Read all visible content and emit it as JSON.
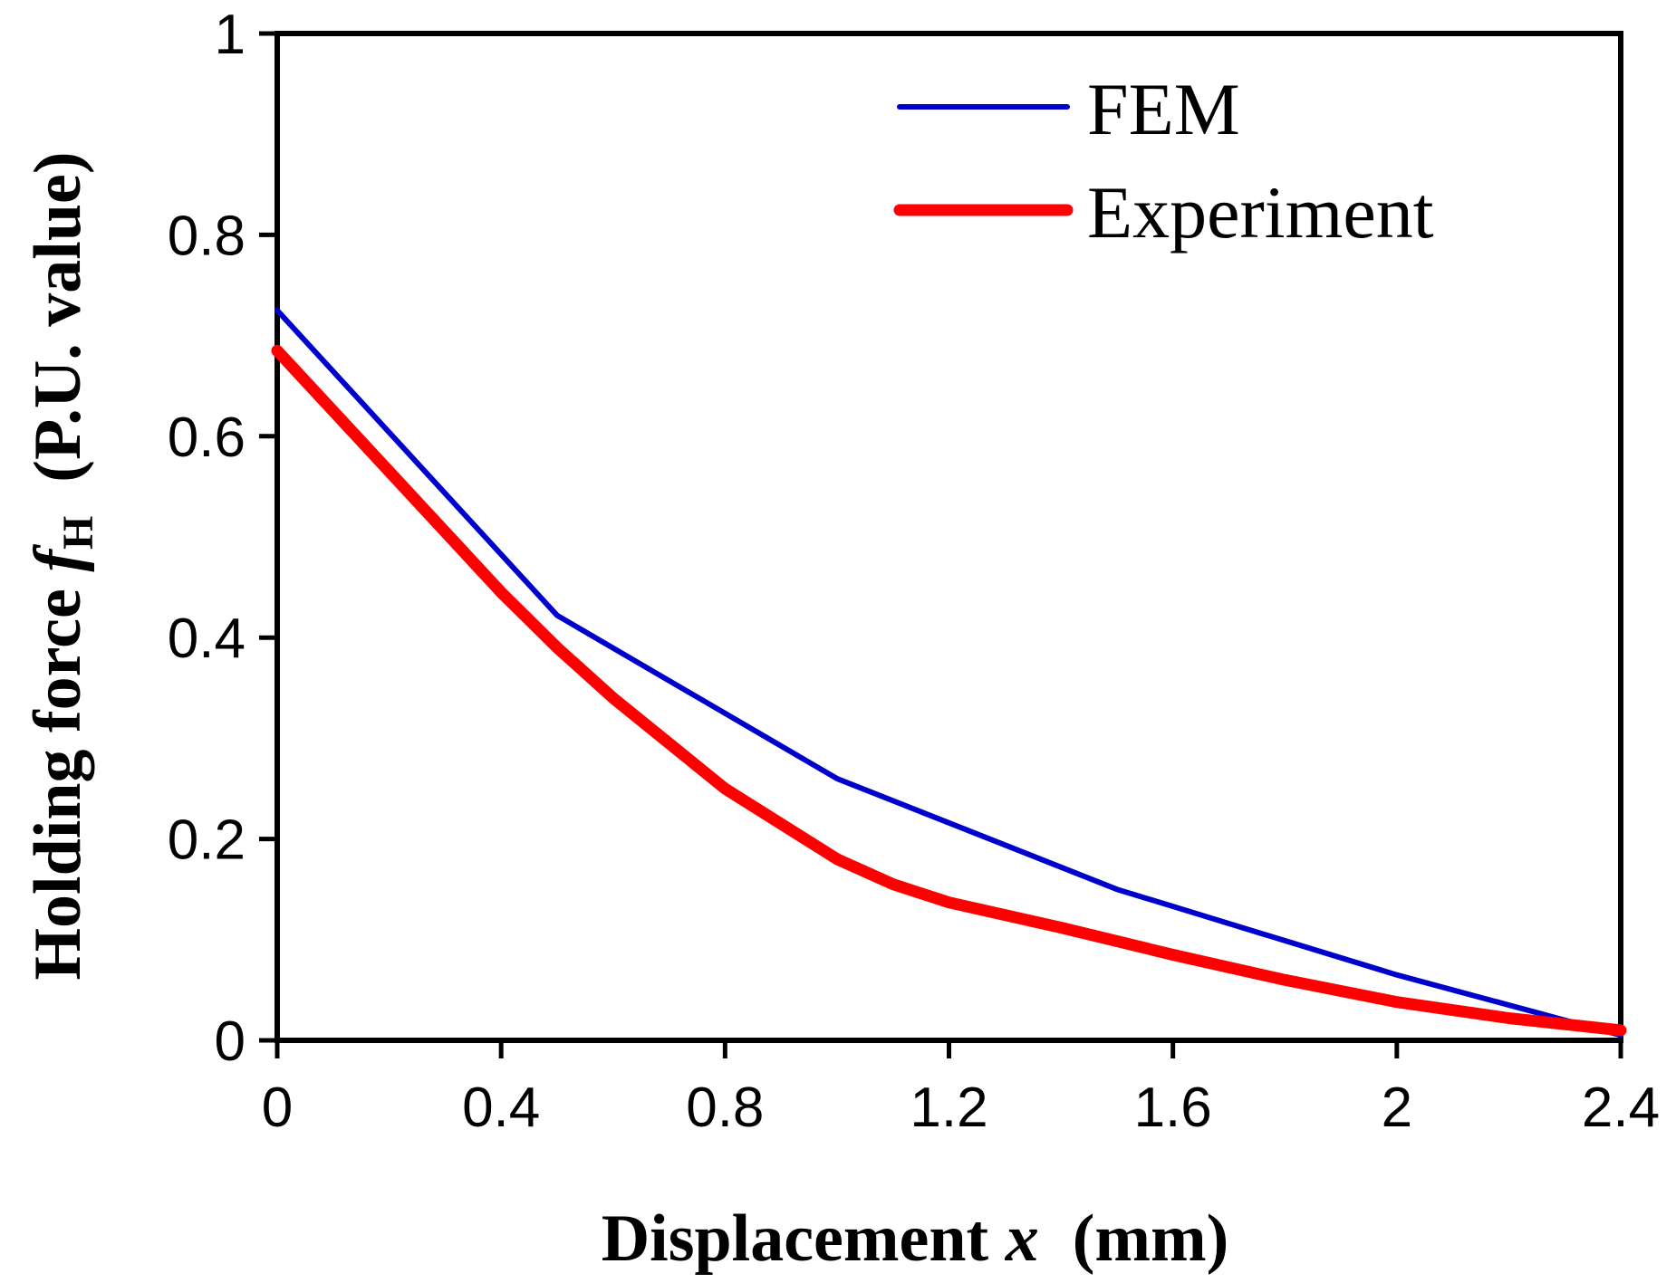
{
  "chart_data": {
    "type": "line",
    "xlabel_prefix": "Displacement",
    "xlabel_var": "x",
    "xlabel_unit": "(mm)",
    "ylabel_prefix": "Holding force",
    "ylabel_var": "f",
    "ylabel_sub": "H",
    "ylabel_unit": "(P.U. value)",
    "xlim": [
      0,
      2.4
    ],
    "ylim": [
      0,
      1
    ],
    "xticks": [
      0,
      0.4,
      0.8,
      1.2,
      1.6,
      2,
      2.4
    ],
    "xtick_labels": [
      "0",
      "0.4",
      "0.8",
      "1.2",
      "1.6",
      "2",
      "2.4"
    ],
    "yticks": [
      0,
      0.2,
      0.4,
      0.6,
      0.8,
      1
    ],
    "ytick_labels": [
      "0",
      "0.2",
      "0.4",
      "0.6",
      "0.8",
      "1"
    ],
    "grid": false,
    "legend_position": "top-right",
    "series": [
      {
        "name": "FEM",
        "color": "#0000cc",
        "x": [
          0,
          0.5,
          1.0,
          1.5,
          2.0,
          2.4
        ],
        "y": [
          0.725,
          0.422,
          0.26,
          0.15,
          0.065,
          0.005
        ]
      },
      {
        "name": "Experiment",
        "color": "#ff0000",
        "x": [
          0,
          0.2,
          0.4,
          0.5,
          0.6,
          0.8,
          1.0,
          1.1,
          1.2,
          1.4,
          1.6,
          1.8,
          2.0,
          2.2,
          2.4
        ],
        "y": [
          0.685,
          0.565,
          0.445,
          0.39,
          0.34,
          0.25,
          0.18,
          0.155,
          0.137,
          0.112,
          0.085,
          0.06,
          0.038,
          0.022,
          0.01
        ]
      }
    ]
  }
}
